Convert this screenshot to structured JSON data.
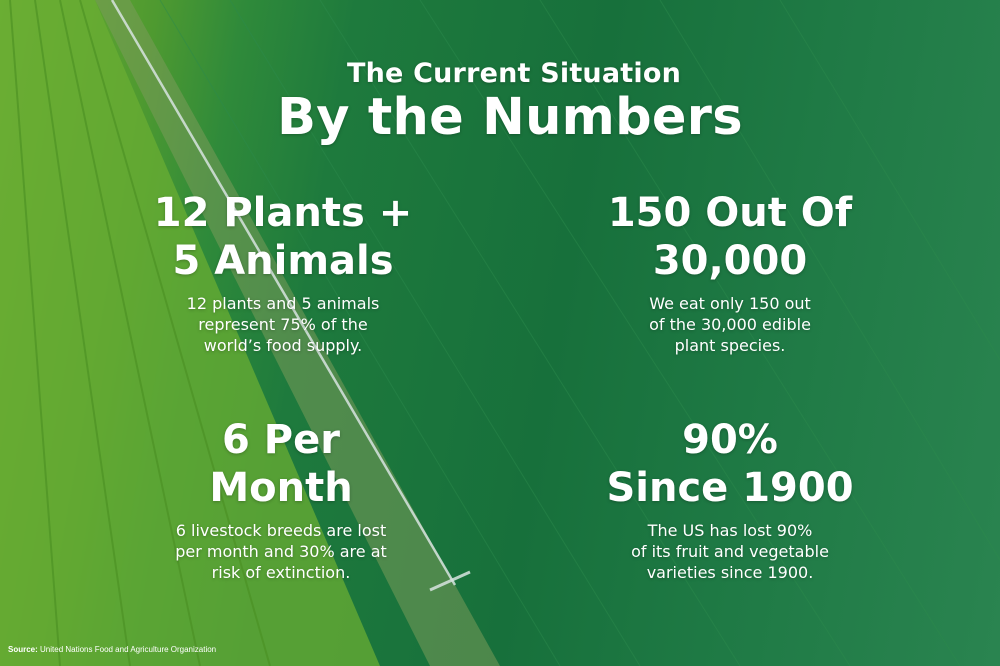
{
  "header": {
    "subtitle": "The Current Situation",
    "title": "By the Numbers"
  },
  "stats": [
    {
      "headline_line1": "12 Plants +",
      "headline_line2": "5 Animals",
      "desc_line1": "12 plants and 5 animals",
      "desc_line2": "represent 75% of the",
      "desc_line3": "world’s food supply."
    },
    {
      "headline_line1": "150 Out Of",
      "headline_line2": "30,000",
      "desc_line1": "We eat only 150 out",
      "desc_line2": "of the 30,000 edible",
      "desc_line3": "plant species."
    },
    {
      "headline_line1": "6 Per",
      "headline_line2": "Month",
      "desc_line1": "6 livestock breeds are lost",
      "desc_line2": "per month and 30% are at",
      "desc_line3": "risk of extinction."
    },
    {
      "headline_line1": "90%",
      "headline_line2": "Since 1900",
      "desc_line1": "The US has lost 90%",
      "desc_line2": "of its fruit and vegetable",
      "desc_line3": "varieties since 1900."
    }
  ],
  "footer": {
    "source_label": "Source:",
    "source_text": "United Nations Food and Agriculture Organization"
  },
  "colors": {
    "text": "#ffffff",
    "field_light": "#6fae35",
    "field_dark": "#17703b"
  }
}
